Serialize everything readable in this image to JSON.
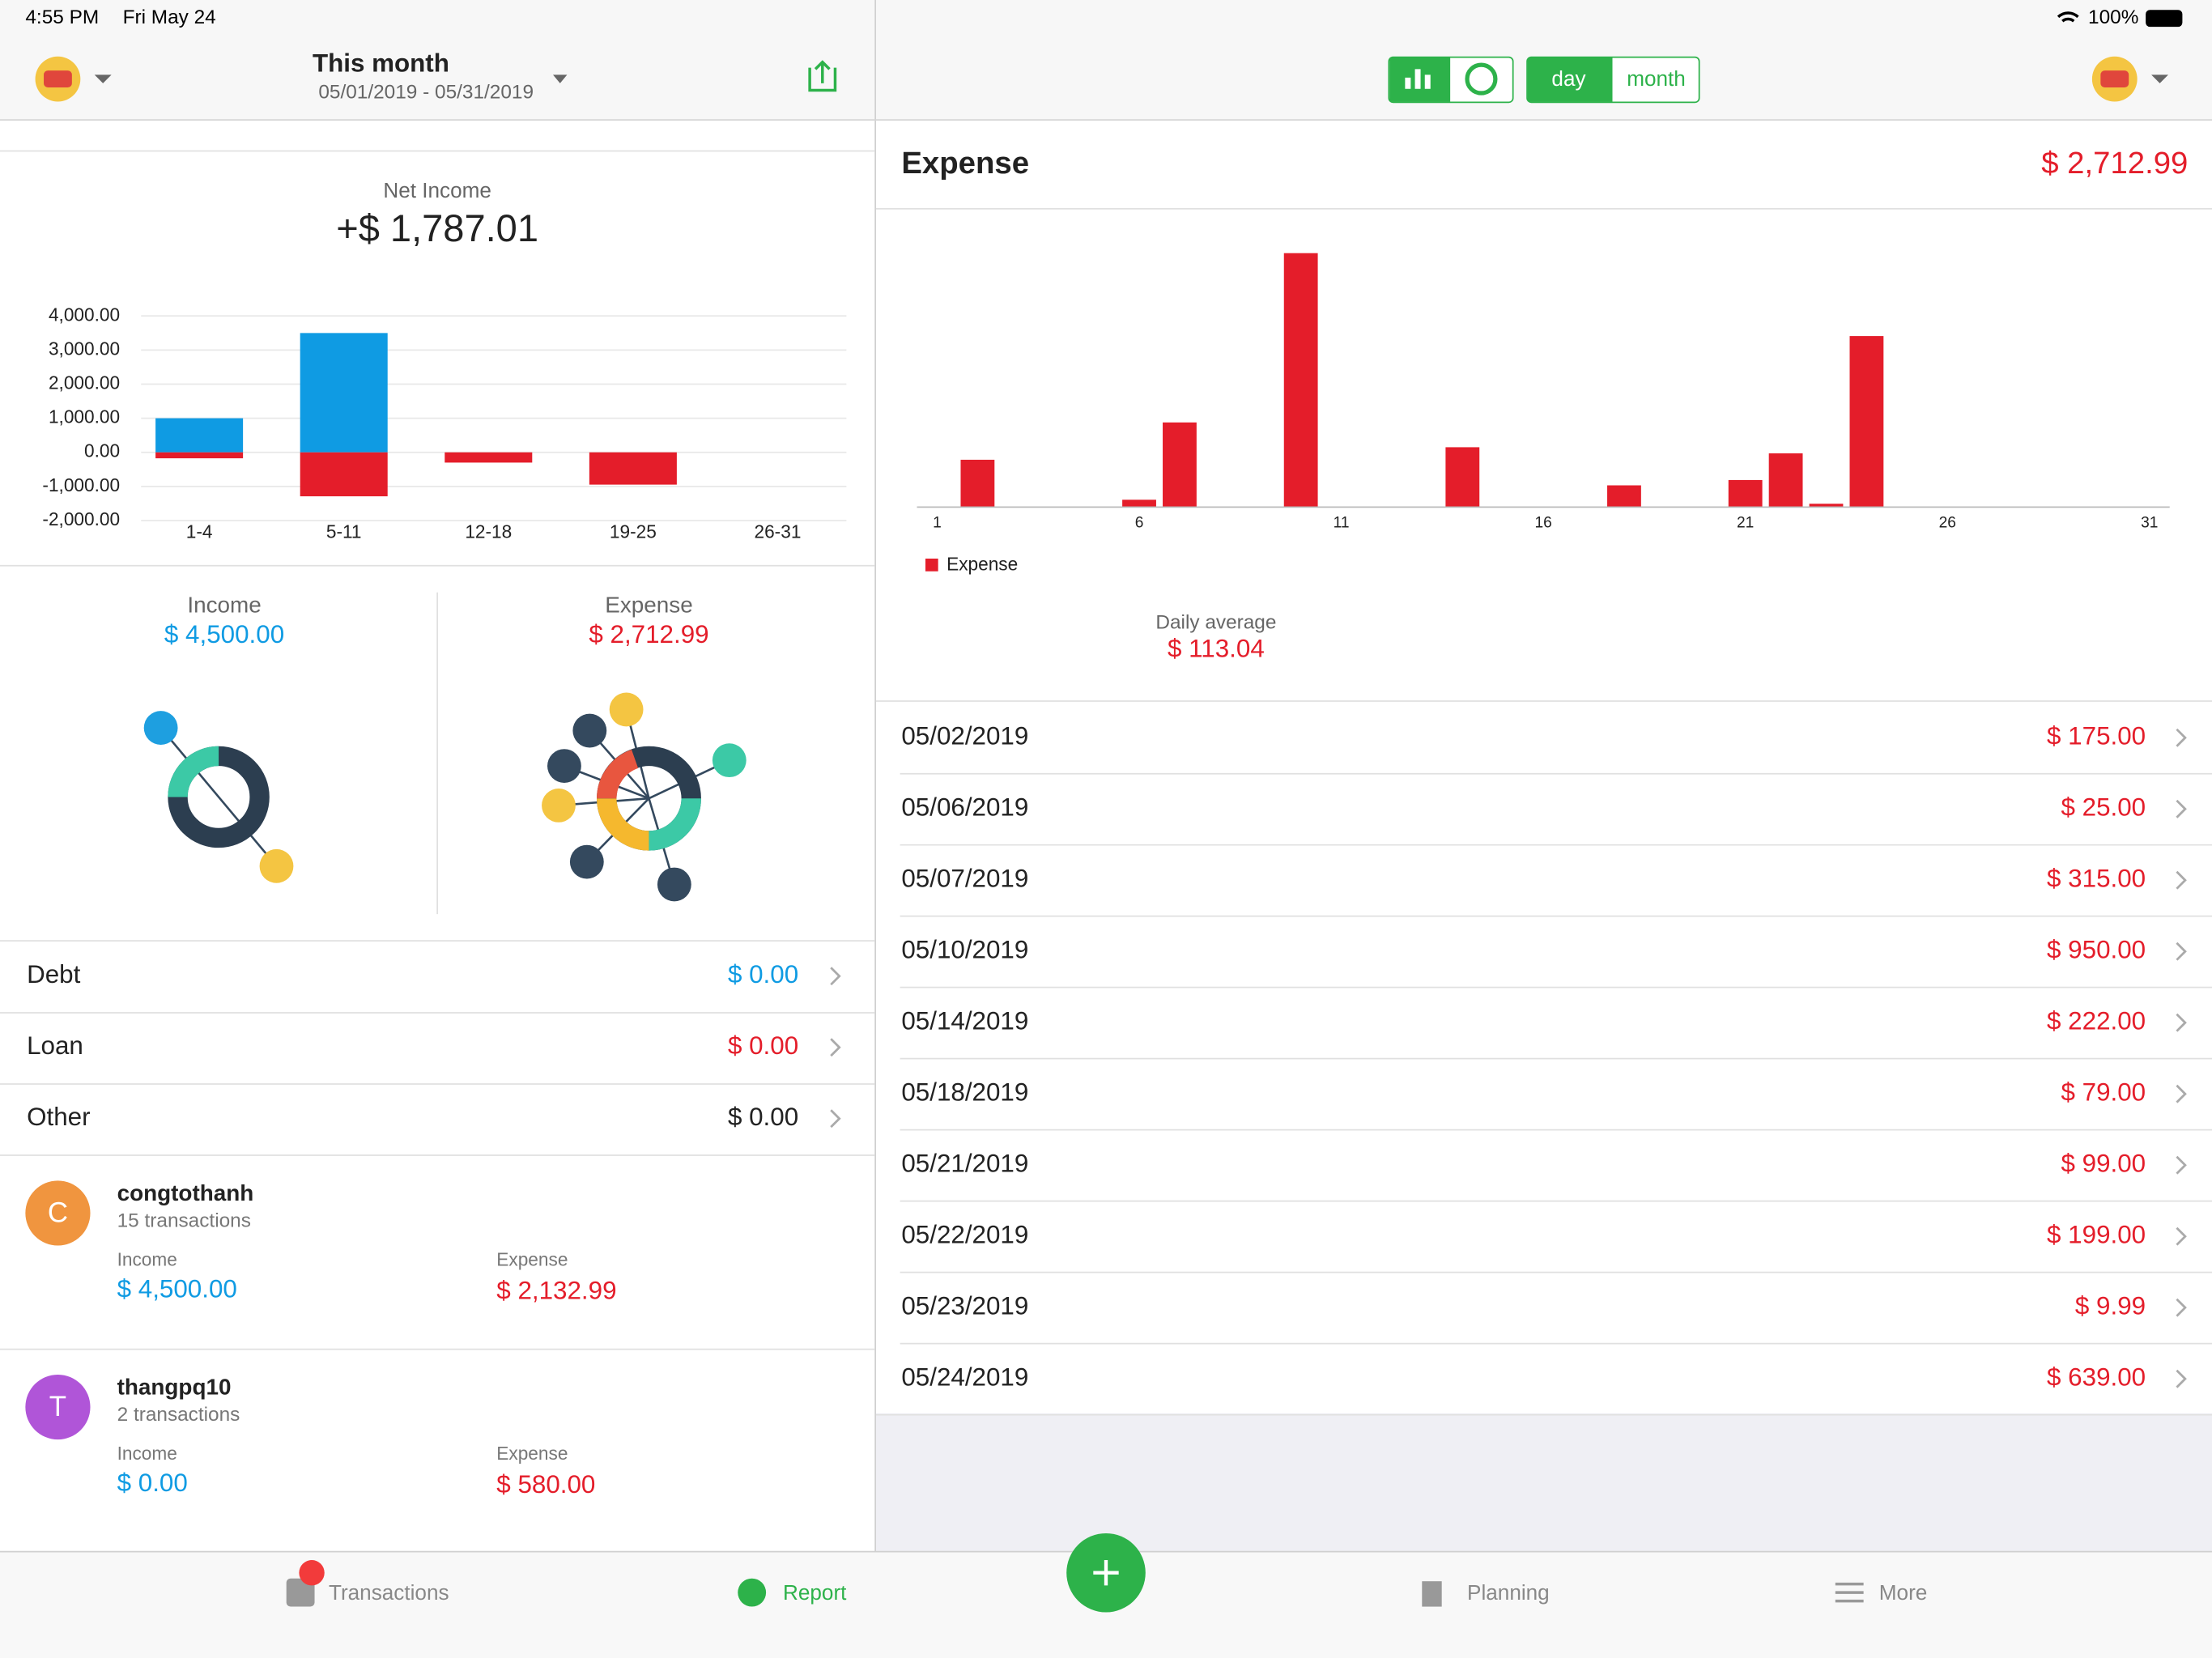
{
  "status_bar": {
    "time": "4:55 PM",
    "date": "Fri May 24",
    "battery": "100%"
  },
  "left_header": {
    "title": "This month",
    "date_range": "05/01/2019 - 05/31/2019"
  },
  "net_income": {
    "label": "Net Income",
    "amount": "+$ 1,787.01"
  },
  "chart_data": [
    {
      "type": "bar",
      "stacked": true,
      "categories": [
        "1-4",
        "5-11",
        "12-18",
        "19-25",
        "26-31"
      ],
      "series": [
        {
          "color": "#0f9be3",
          "values": [
            1000,
            3500,
            0,
            0,
            0
          ]
        },
        {
          "color": "#e41d2a",
          "values": [
            -175,
            -1290,
            -301,
            -946.99,
            0
          ]
        }
      ],
      "ylim": [
        -2000,
        4000
      ],
      "yticks": [
        {
          "value": 4000,
          "label": "4,000.00"
        },
        {
          "value": 3000,
          "label": "3,000.00"
        },
        {
          "value": 2000,
          "label": "2,000.00"
        },
        {
          "value": 1000,
          "label": "1,000.00"
        },
        {
          "value": 0,
          "label": "0.00"
        },
        {
          "value": -1000,
          "label": "-1,000.00"
        },
        {
          "value": -2000,
          "label": "-2,000.00"
        }
      ],
      "grid": true
    },
    {
      "type": "bar",
      "x": [
        2,
        6,
        7,
        10,
        14,
        18,
        21,
        22,
        23,
        24
      ],
      "series": [
        {
          "name": "Expense",
          "color": "#e41d2a",
          "values": [
            175,
            25,
            315,
            950,
            222,
            79,
            99,
            199,
            9.99,
            639
          ]
        }
      ],
      "xlim": [
        0.5,
        31.5
      ],
      "xticks": [
        1,
        6,
        11,
        16,
        21,
        26,
        31
      ],
      "ylim": [
        0,
        1000
      ],
      "legend": "bottom-left"
    }
  ],
  "summary": {
    "income_label": "Income",
    "income": "$ 4,500.00",
    "expense_label": "Expense",
    "expense": "$ 2,712.99"
  },
  "balances": [
    {
      "label": "Debt",
      "amount": "$ 0.00",
      "color": "#0f9be3"
    },
    {
      "label": "Loan",
      "amount": "$ 0.00",
      "color": "#e41d2a"
    },
    {
      "label": "Other",
      "amount": "$ 0.00",
      "color": "#222222"
    }
  ],
  "users": [
    {
      "initial": "C",
      "avatar_color": "#f0953f",
      "name": "congtothanh",
      "transactions": "15 transactions",
      "income_label": "Income",
      "income": "$ 4,500.00",
      "expense_label": "Expense",
      "expense": "$ 2,132.99"
    },
    {
      "initial": "T",
      "avatar_color": "#b055d8",
      "name": "thangpq10",
      "transactions": "2 transactions",
      "income_label": "Income",
      "income": "$ 0.00",
      "expense_label": "Expense",
      "expense": "$ 580.00"
    }
  ],
  "toolbar": {
    "day": "day",
    "month": "month"
  },
  "expense_panel": {
    "title": "Expense",
    "total": "$ 2,712.99",
    "daily_average_label": "Daily average",
    "daily_average": "$ 113.04"
  },
  "daily_list": [
    {
      "date": "05/02/2019",
      "amount": "$ 175.00"
    },
    {
      "date": "05/06/2019",
      "amount": "$ 25.00"
    },
    {
      "date": "05/07/2019",
      "amount": "$ 315.00"
    },
    {
      "date": "05/10/2019",
      "amount": "$ 950.00"
    },
    {
      "date": "05/14/2019",
      "amount": "$ 222.00"
    },
    {
      "date": "05/18/2019",
      "amount": "$ 79.00"
    },
    {
      "date": "05/21/2019",
      "amount": "$ 99.00"
    },
    {
      "date": "05/22/2019",
      "amount": "$ 199.00"
    },
    {
      "date": "05/23/2019",
      "amount": "$ 9.99"
    },
    {
      "date": "05/24/2019",
      "amount": "$ 639.00"
    }
  ],
  "tab_bar": [
    "Transactions",
    "Report",
    "Planning",
    "More"
  ]
}
